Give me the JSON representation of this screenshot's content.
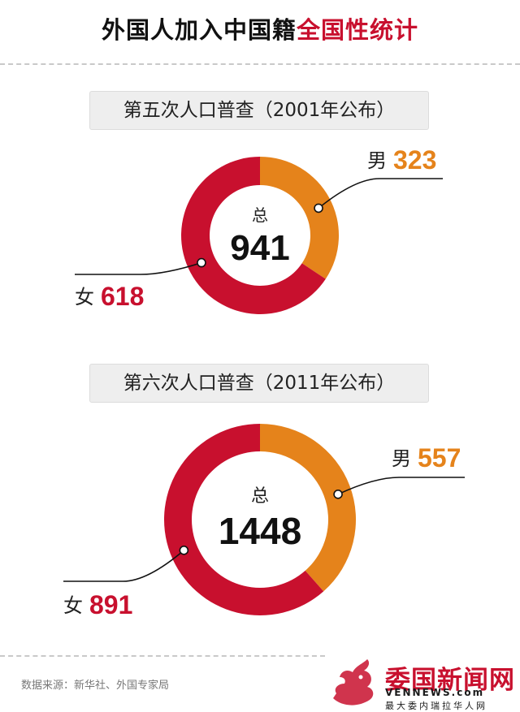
{
  "header": {
    "title_main": "外国人加入中国籍",
    "title_accent": "全国性统计"
  },
  "chart_data": [
    {
      "type": "pie",
      "title": "第五次人口普查（2001年公布）",
      "total_label": "总",
      "total": 941,
      "slices": [
        {
          "name": "男",
          "value": 323,
          "color": "#e5831b"
        },
        {
          "name": "女",
          "value": 618,
          "color": "#c8102e"
        }
      ]
    },
    {
      "type": "pie",
      "title": "第六次人口普查（2011年公布）",
      "total_label": "总",
      "total": 1448,
      "slices": [
        {
          "name": "男",
          "value": 557,
          "color": "#e5831b"
        },
        {
          "name": "女",
          "value": 891,
          "color": "#c8102e"
        }
      ]
    }
  ],
  "footer": {
    "source": "数据来源：新华社、外国专家局",
    "logo_name": "委国新闻网",
    "logo_url": "VENNEWS.com",
    "logo_slogan": "最大委内瑞拉华人网"
  }
}
